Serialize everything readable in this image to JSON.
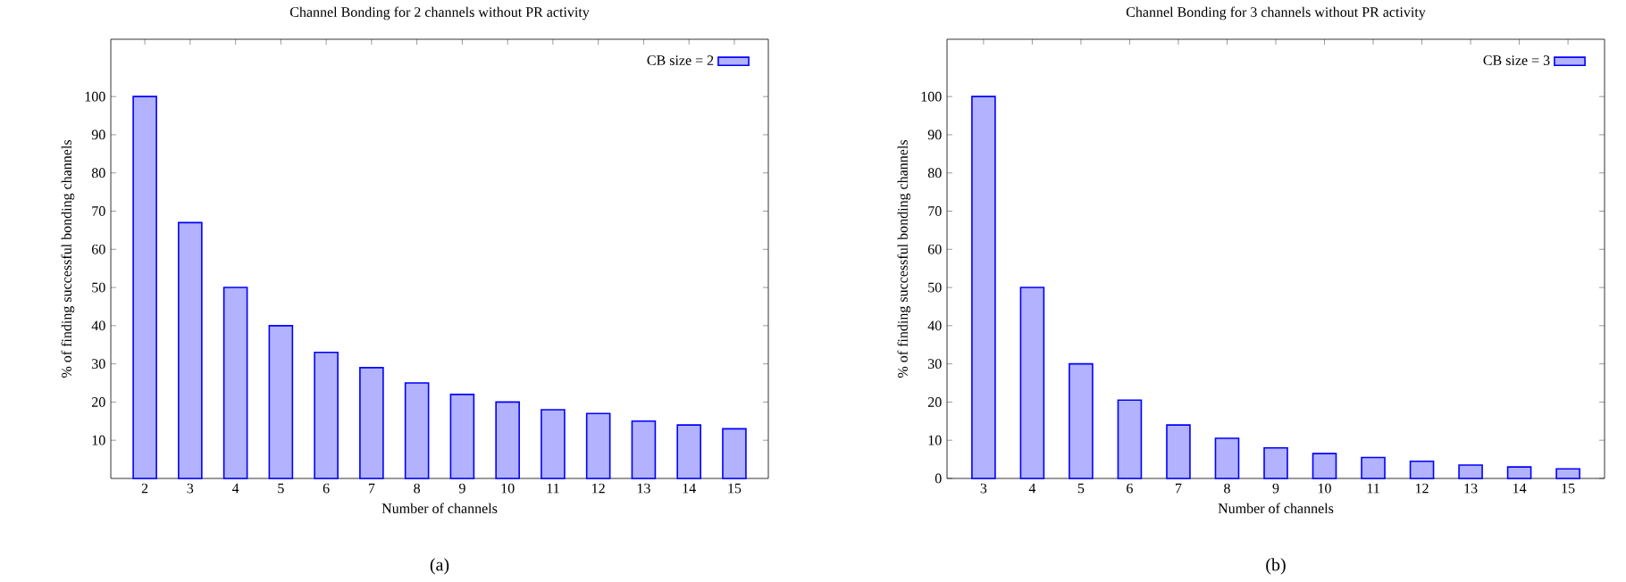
{
  "chart_data": [
    {
      "type": "bar",
      "title": "Channel Bonding for 2 channels without PR activity",
      "xlabel": "Number of channels",
      "ylabel": "% of finding successful bonding channels",
      "categories": [
        "2",
        "3",
        "4",
        "5",
        "6",
        "7",
        "8",
        "9",
        "10",
        "11",
        "12",
        "13",
        "14",
        "15"
      ],
      "series": [
        {
          "name": "CB size = 2",
          "color": "#0000ff",
          "values": [
            100,
            67,
            50,
            40,
            33,
            29,
            25,
            22,
            20,
            18,
            17,
            15,
            14,
            13
          ]
        }
      ],
      "ylim": [
        0,
        115
      ],
      "yticks": [
        10,
        20,
        30,
        40,
        50,
        60,
        70,
        80,
        90,
        100
      ],
      "legend": "top right",
      "annotations": [
        "(a)"
      ]
    },
    {
      "type": "bar",
      "title": "Channel Bonding for 3 channels without PR activity",
      "xlabel": "Number of channels",
      "ylabel": "% of finding successful bonding channels",
      "categories": [
        "3",
        "4",
        "5",
        "6",
        "7",
        "8",
        "9",
        "10",
        "11",
        "12",
        "13",
        "14",
        "15"
      ],
      "series": [
        {
          "name": "CB size = 3",
          "color": "#0000ff",
          "values": [
            100,
            50,
            30,
            20.5,
            14,
            10.5,
            8,
            6.5,
            5.5,
            4.5,
            3.5,
            3,
            2.5
          ]
        }
      ],
      "ylim": [
        0,
        115
      ],
      "yticks": [
        0,
        10,
        20,
        30,
        40,
        50,
        60,
        70,
        80,
        90,
        100
      ],
      "legend": "top right",
      "annotations": [
        "(b)"
      ]
    }
  ]
}
